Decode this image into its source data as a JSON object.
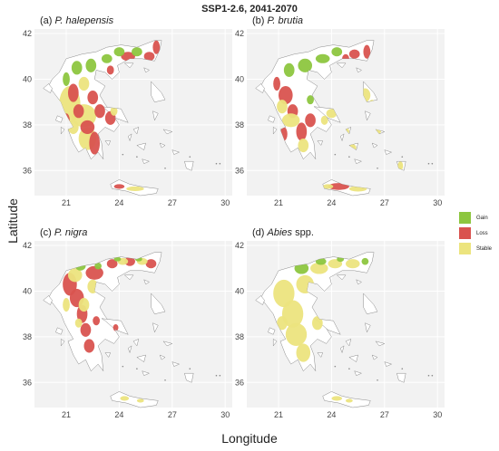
{
  "title": "SSP1-2.6, 2041-2070",
  "ylabel": "Latitude",
  "xlabel": "Longitude",
  "colors": {
    "gain": "#8dc63f",
    "loss": "#d9534f",
    "stable": "#ece47e",
    "panel_bg": "#f2f2f2",
    "grid": "#e0e0e0",
    "outline": "#8a8a8a"
  },
  "legend": [
    {
      "label": "Gain",
      "color": "#8dc63f"
    },
    {
      "label": "Loss",
      "color": "#d9534f"
    },
    {
      "label": "Stable",
      "color": "#ece47e"
    }
  ],
  "axes": {
    "lat_ticks": [
      "42",
      "40",
      "38",
      "36"
    ],
    "lon_ticks": [
      "21",
      "24",
      "27",
      "30"
    ]
  },
  "panels": [
    {
      "prefix": "(a) ",
      "species": "P. halepensis",
      "suffix": ""
    },
    {
      "prefix": "(b) ",
      "species": "P. brutia",
      "suffix": ""
    },
    {
      "prefix": "(c) ",
      "species": "P. nigra",
      "suffix": ""
    },
    {
      "prefix": "(d) ",
      "species": "Abies",
      "suffix": " spp."
    }
  ]
}
